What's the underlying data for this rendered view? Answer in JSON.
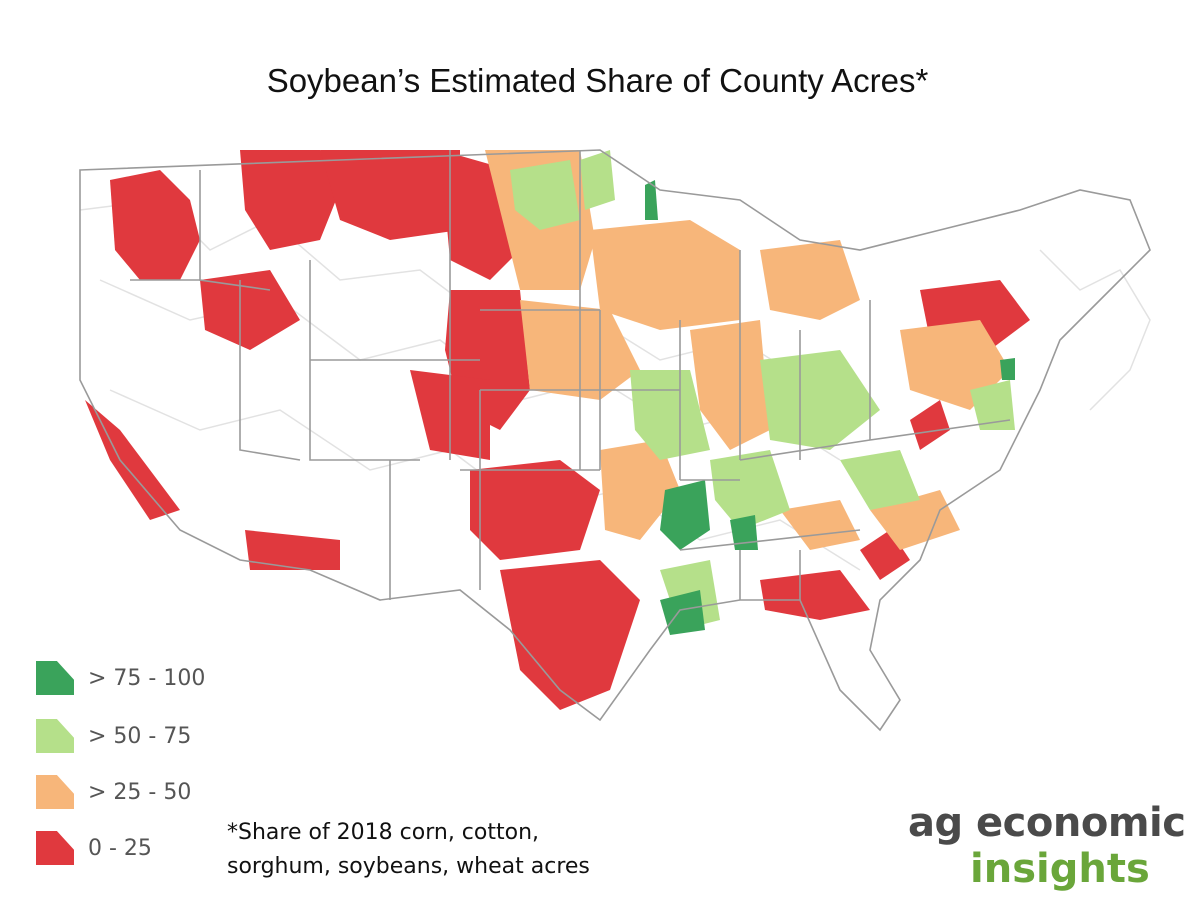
{
  "title": "Soybean’s Estimated Share of County Acres*",
  "legend": [
    {
      "label": "> 75 - 100",
      "color": "#3aa35b"
    },
    {
      "label": "> 50 - 75",
      "color": "#b5e08a"
    },
    {
      "label": "> 25 - 50",
      "color": "#f7b67a"
    },
    {
      "label": "0 - 25",
      "color": "#e0393e"
    }
  ],
  "footnote": {
    "line1": "*Share of 2018 corn, cotton,",
    "line2": "sorghum, soybeans, wheat acres"
  },
  "logo": {
    "line1": "ag economic",
    "line2": "insights"
  },
  "map": {
    "outline_color": "#9a9a9a",
    "no_data_color": "#ffffff"
  }
}
